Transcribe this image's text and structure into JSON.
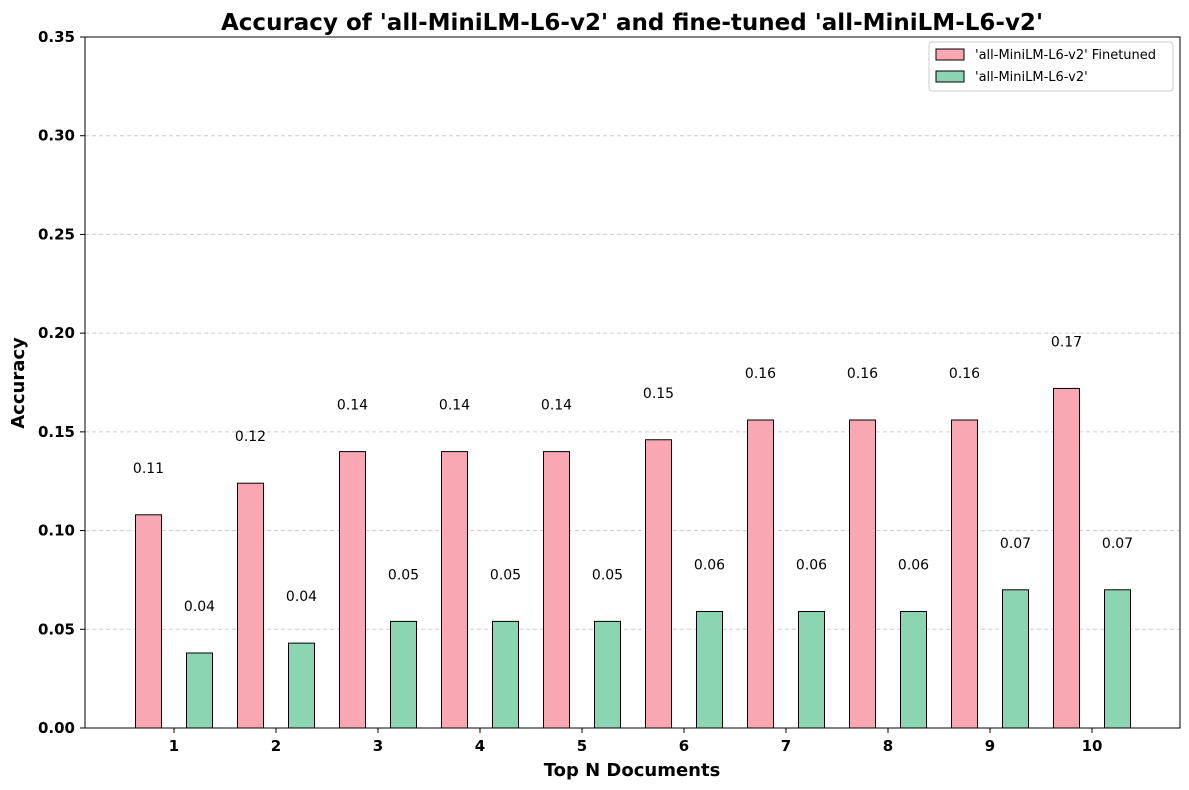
{
  "chart_data": {
    "type": "bar",
    "title": "Accuracy of 'all-MiniLM-L6-v2' and fine-tuned 'all-MiniLM-L6-v2'",
    "xlabel": "Top N Documents",
    "ylabel": "Accuracy",
    "categories": [
      "1",
      "2",
      "3",
      "4",
      "5",
      "6",
      "7",
      "8",
      "9",
      "10"
    ],
    "ylim": [
      0,
      0.35
    ],
    "yticks": [
      "0.00",
      "0.05",
      "0.10",
      "0.15",
      "0.20",
      "0.25",
      "0.30",
      "0.35"
    ],
    "grid": true,
    "legend_position": "top-right",
    "series": [
      {
        "name": "'all-MiniLM-L6-v2' Finetuned",
        "color": "#f9a7b3",
        "values": [
          0.108,
          0.124,
          0.14,
          0.14,
          0.14,
          0.146,
          0.156,
          0.156,
          0.156,
          0.172
        ],
        "labels": [
          "0.11",
          "0.12",
          "0.14",
          "0.14",
          "0.14",
          "0.15",
          "0.16",
          "0.16",
          "0.16",
          "0.17"
        ]
      },
      {
        "name": "'all-MiniLM-L6-v2'",
        "color": "#8bd5b3",
        "values": [
          0.038,
          0.043,
          0.054,
          0.054,
          0.054,
          0.059,
          0.059,
          0.059,
          0.07,
          0.07
        ],
        "labels": [
          "0.04",
          "0.04",
          "0.05",
          "0.05",
          "0.05",
          "0.06",
          "0.06",
          "0.06",
          "0.07",
          "0.07"
        ]
      }
    ]
  }
}
